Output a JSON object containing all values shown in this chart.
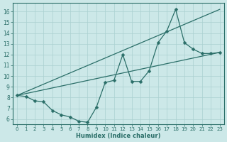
{
  "xlabel": "Humidex (Indice chaleur)",
  "xlim": [
    -0.5,
    23.5
  ],
  "ylim": [
    5.5,
    16.8
  ],
  "xticks": [
    0,
    1,
    2,
    3,
    4,
    5,
    6,
    7,
    8,
    9,
    10,
    11,
    12,
    13,
    14,
    15,
    16,
    17,
    18,
    19,
    20,
    21,
    22,
    23
  ],
  "yticks": [
    6,
    7,
    8,
    9,
    10,
    11,
    12,
    13,
    14,
    15,
    16
  ],
  "bg_color": "#cce8e8",
  "line_color": "#2a6e68",
  "grid_color": "#aad0d0",
  "line1_x": [
    0,
    1,
    2,
    3,
    4,
    5,
    6,
    7,
    8,
    9,
    10,
    11,
    12,
    13,
    14,
    15,
    16,
    17,
    18,
    19,
    20,
    21,
    22,
    23
  ],
  "line1_y": [
    8.2,
    8.1,
    7.7,
    7.6,
    6.8,
    6.4,
    6.2,
    5.8,
    5.7,
    7.1,
    9.4,
    9.6,
    12.0,
    9.5,
    9.5,
    10.5,
    13.1,
    14.2,
    16.2,
    13.1,
    12.5,
    12.1,
    12.1,
    12.2
  ],
  "line2_x": [
    0,
    23
  ],
  "line2_y": [
    8.2,
    12.2
  ],
  "line3_x": [
    0,
    23
  ],
  "line3_y": [
    8.2,
    16.2
  ]
}
